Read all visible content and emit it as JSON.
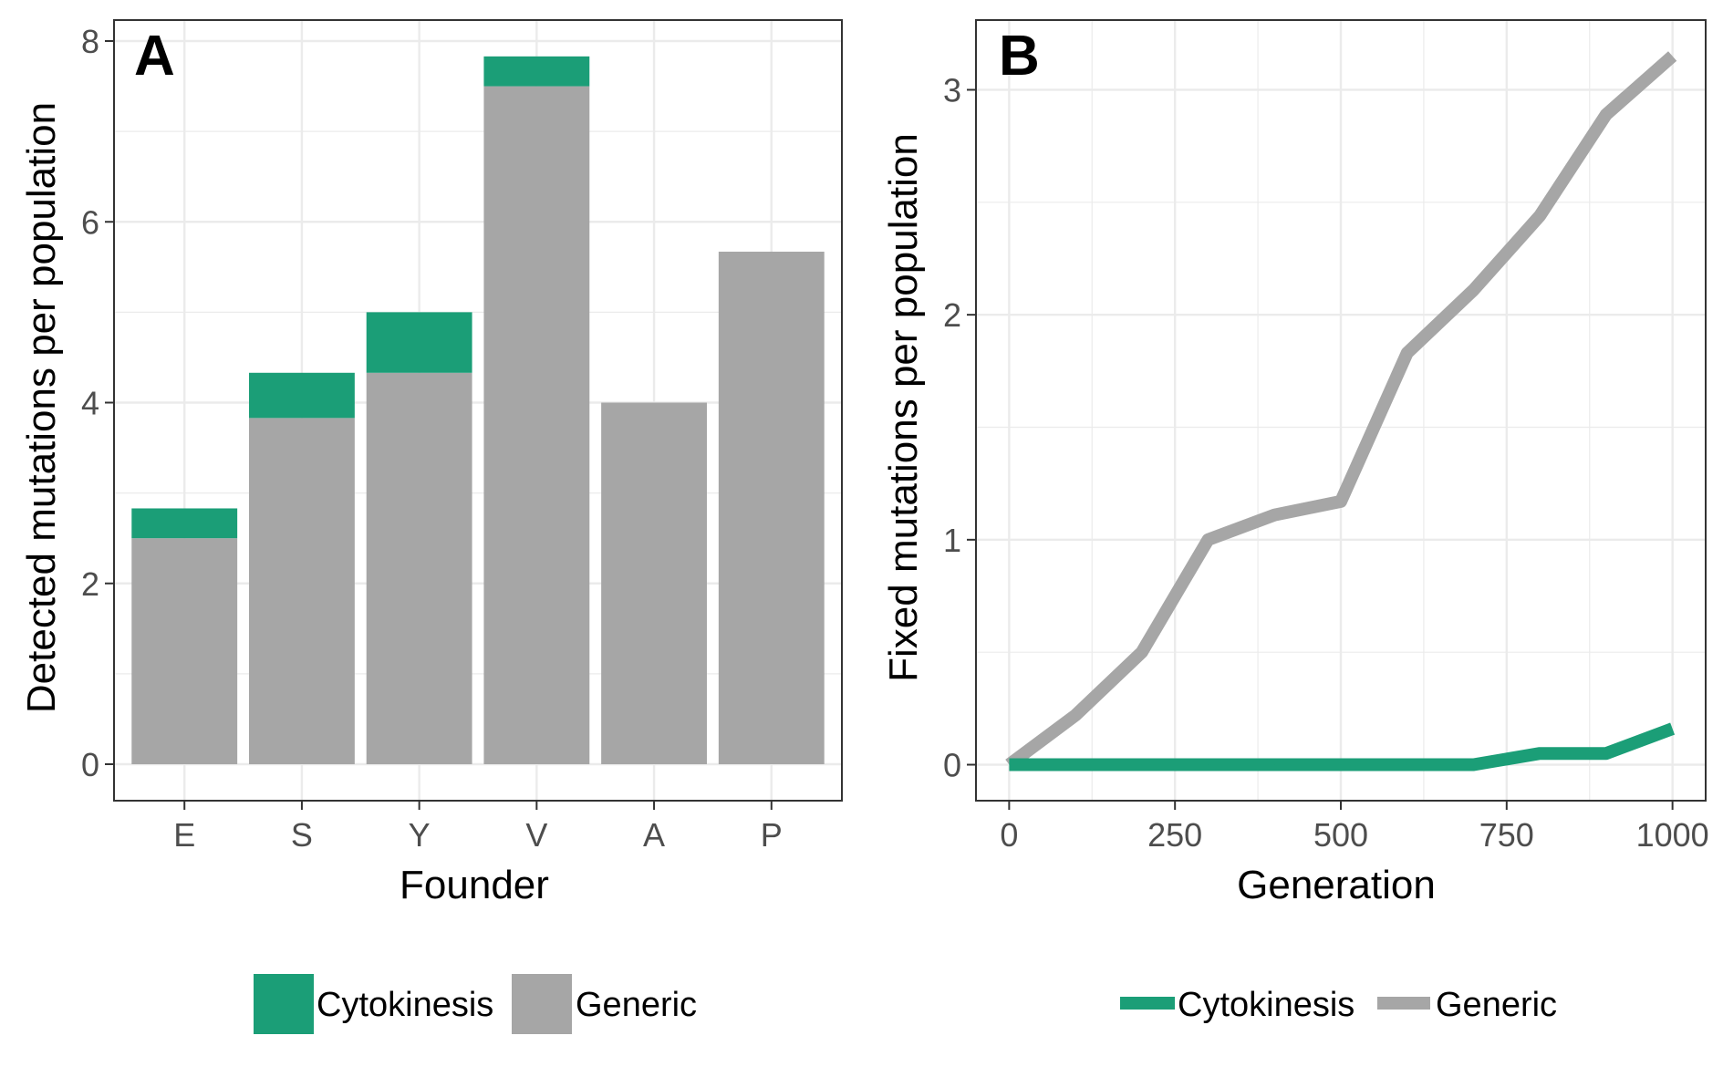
{
  "colors": {
    "cytokinesis": "#1b9e77",
    "generic": "#a6a6a6",
    "grid": "#ebebeb",
    "panel_border": "#333333",
    "tick_text": "#4d4d4d",
    "axis_title": "#000000"
  },
  "chart_data": [
    {
      "type": "bar",
      "stacked": true,
      "panel_label": "A",
      "xlabel": "Founder",
      "ylabel": "Detected mutations per population",
      "categories": [
        "E",
        "S",
        "Y",
        "V",
        "A",
        "P"
      ],
      "series": [
        {
          "name": "Generic",
          "color": "#a6a6a6",
          "values": [
            2.5,
            3.83,
            4.33,
            7.5,
            4.0,
            5.67
          ]
        },
        {
          "name": "Cytokinesis",
          "color": "#1b9e77",
          "values": [
            0.33,
            0.5,
            0.67,
            0.33,
            0,
            0
          ]
        }
      ],
      "ylim": [
        0,
        8
      ],
      "yticks": [
        0,
        2,
        4,
        6,
        8
      ],
      "ytick_labels": [
        "0",
        "2",
        "4",
        "6",
        "8"
      ],
      "grid": true,
      "legend": {
        "position": "bottom",
        "order": [
          "Cytokinesis",
          "Generic"
        ]
      }
    },
    {
      "type": "line",
      "panel_label": "B",
      "xlabel": "Generation",
      "ylabel": "Fixed mutations per population",
      "x": [
        0,
        100,
        200,
        300,
        400,
        500,
        600,
        700,
        800,
        900,
        1000
      ],
      "series": [
        {
          "name": "Cytokinesis",
          "color": "#1b9e77",
          "values": [
            0,
            0,
            0,
            0,
            0,
            0,
            0,
            0,
            0.05,
            0.05,
            0.16
          ]
        },
        {
          "name": "Generic",
          "color": "#a6a6a6",
          "values": [
            0,
            0.22,
            0.5,
            1.0,
            1.11,
            1.17,
            1.83,
            2.11,
            2.44,
            2.89,
            3.15
          ]
        }
      ],
      "xlim": [
        -50,
        1050
      ],
      "ylim": [
        -0.16,
        3.31
      ],
      "xticks": [
        0,
        250,
        500,
        750,
        1000
      ],
      "xtick_labels": [
        "0",
        "250",
        "500",
        "750",
        "1000"
      ],
      "yticks": [
        0,
        1,
        2,
        3
      ],
      "ytick_labels": [
        "0",
        "1",
        "2",
        "3"
      ],
      "grid": true,
      "legend": {
        "position": "bottom",
        "order": [
          "Cytokinesis",
          "Generic"
        ]
      }
    }
  ]
}
